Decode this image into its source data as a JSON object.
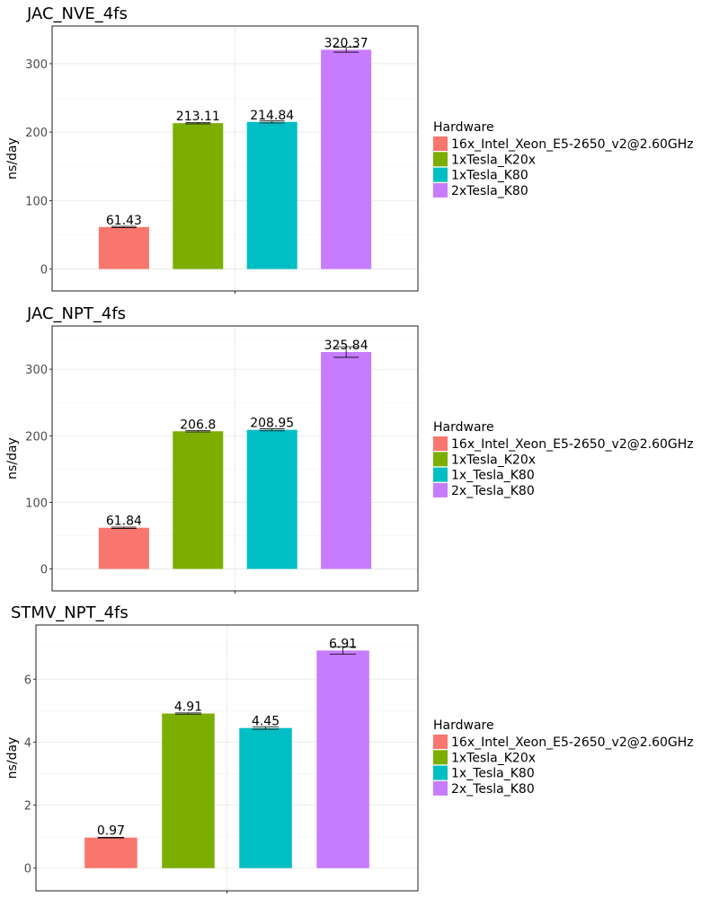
{
  "chart_data": [
    {
      "type": "bar",
      "title": "JAC_NVE_4fs",
      "xlabel": "",
      "ylabel": "ns/day",
      "ylim": [
        -32,
        355
      ],
      "yticks": [
        0,
        100,
        200,
        300
      ],
      "ytick_labels": [
        "0",
        "100",
        "200",
        "300"
      ],
      "grid": true,
      "categories": [
        "16x_Intel_Xeon_E5-2650_v2@2.60GHz",
        "1xTesla_K20x",
        "1xTesla_K80",
        "2xTesla_K80"
      ],
      "values": [
        61.43,
        213.11,
        214.84,
        320.37
      ],
      "errors": [
        1.0,
        1.0,
        1.5,
        3.5
      ],
      "data_labels": [
        "61.43",
        "213.11",
        "214.84",
        "320.37"
      ],
      "legend": {
        "title": "Hardware",
        "placement": "right",
        "entries": [
          "16x_Intel_Xeon_E5-2650_v2@2.60GHz",
          "1xTesla_K20x",
          "1xTesla_K80",
          "2xTesla_K80"
        ]
      }
    },
    {
      "type": "bar",
      "title": "JAC_NPT_4fs",
      "xlabel": "",
      "ylabel": "ns/day",
      "ylim": [
        -33,
        365
      ],
      "yticks": [
        0,
        100,
        200,
        300
      ],
      "ytick_labels": [
        "0",
        "100",
        "200",
        "300"
      ],
      "grid": true,
      "categories": [
        "16x_Intel_Xeon_E5-2650_v2@2.60GHz",
        "1xTesla_K20x",
        "1x_Tesla_K80",
        "2x_Tesla_K80"
      ],
      "values": [
        61.84,
        206.8,
        208.95,
        325.84
      ],
      "errors": [
        1.0,
        1.0,
        1.5,
        8.0
      ],
      "data_labels": [
        "61.84",
        "206.8",
        "208.95",
        "325.84"
      ],
      "legend": {
        "title": "Hardware",
        "placement": "right",
        "entries": [
          "16x_Intel_Xeon_E5-2650_v2@2.60GHz",
          "1xTesla_K20x",
          "1x_Tesla_K80",
          "2x_Tesla_K80"
        ]
      }
    },
    {
      "type": "bar",
      "title": "STMV_NPT_4fs",
      "xlabel": "",
      "ylabel": "ns/day",
      "ylim": [
        -0.72,
        7.72
      ],
      "yticks": [
        0,
        2,
        4,
        6
      ],
      "ytick_labels": [
        "0",
        "2",
        "4",
        "6"
      ],
      "grid": true,
      "categories": [
        "16x_Intel_Xeon_E5-2650_v2@2.60GHz",
        "1xTesla_K20x",
        "1x_Tesla_K80",
        "2x_Tesla_K80"
      ],
      "values": [
        0.97,
        4.91,
        4.45,
        6.91
      ],
      "errors": [
        0.01,
        0.02,
        0.04,
        0.12
      ],
      "data_labels": [
        "0.97",
        "4.91",
        "4.45",
        "6.91"
      ],
      "legend": {
        "title": "Hardware",
        "placement": "right",
        "entries": [
          "16x_Intel_Xeon_E5-2650_v2@2.60GHz",
          "1xTesla_K20x",
          "1x_Tesla_K80",
          "2x_Tesla_K80"
        ]
      }
    }
  ],
  "colors": [
    "#F8766D",
    "#7CAE00",
    "#00BFC4",
    "#C77CFF"
  ]
}
